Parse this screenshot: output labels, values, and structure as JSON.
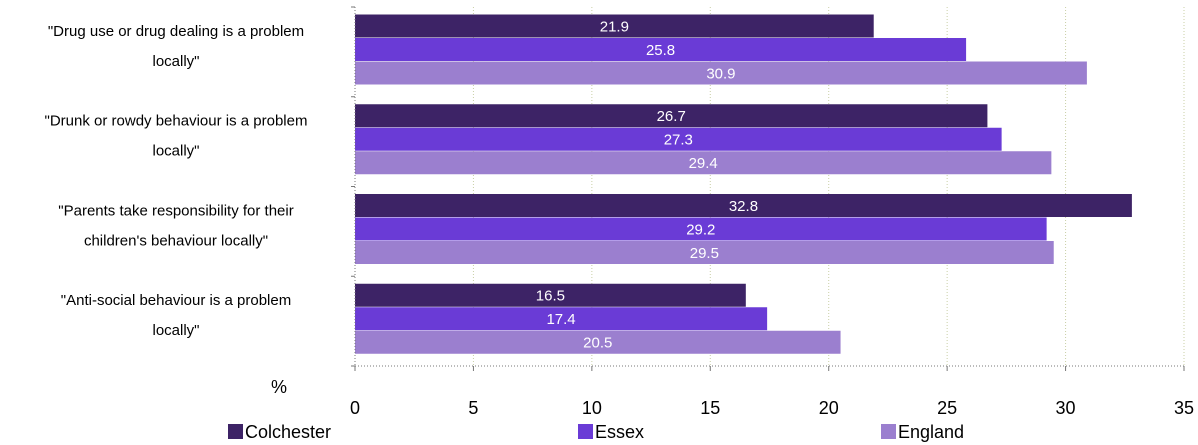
{
  "chart_data": {
    "type": "bar",
    "orientation": "horizontal",
    "categories": [
      [
        "\"Drug use or drug dealing is a problem",
        "locally\""
      ],
      [
        "\"Drunk or rowdy behaviour is a problem",
        "locally\""
      ],
      [
        "\"Parents take responsibility for their",
        "children's behaviour locally\""
      ],
      [
        "\"Anti-social behaviour is a problem",
        "locally\""
      ]
    ],
    "series": [
      {
        "name": "Colchester",
        "color": "#3d2366",
        "values": [
          21.9,
          26.7,
          32.8,
          16.5
        ]
      },
      {
        "name": "Essex",
        "color": "#6a3bd6",
        "values": [
          25.8,
          27.3,
          29.2,
          17.4
        ]
      },
      {
        "name": "England",
        "color": "#9b7fcf",
        "values": [
          30.9,
          29.4,
          29.5,
          20.5
        ]
      }
    ],
    "xlabel": "%",
    "xlim": [
      0,
      35
    ],
    "xticks": [
      0,
      5,
      10,
      15,
      20,
      25,
      30,
      35
    ],
    "grid": "vertical dotted",
    "legend_position": "bottom"
  }
}
